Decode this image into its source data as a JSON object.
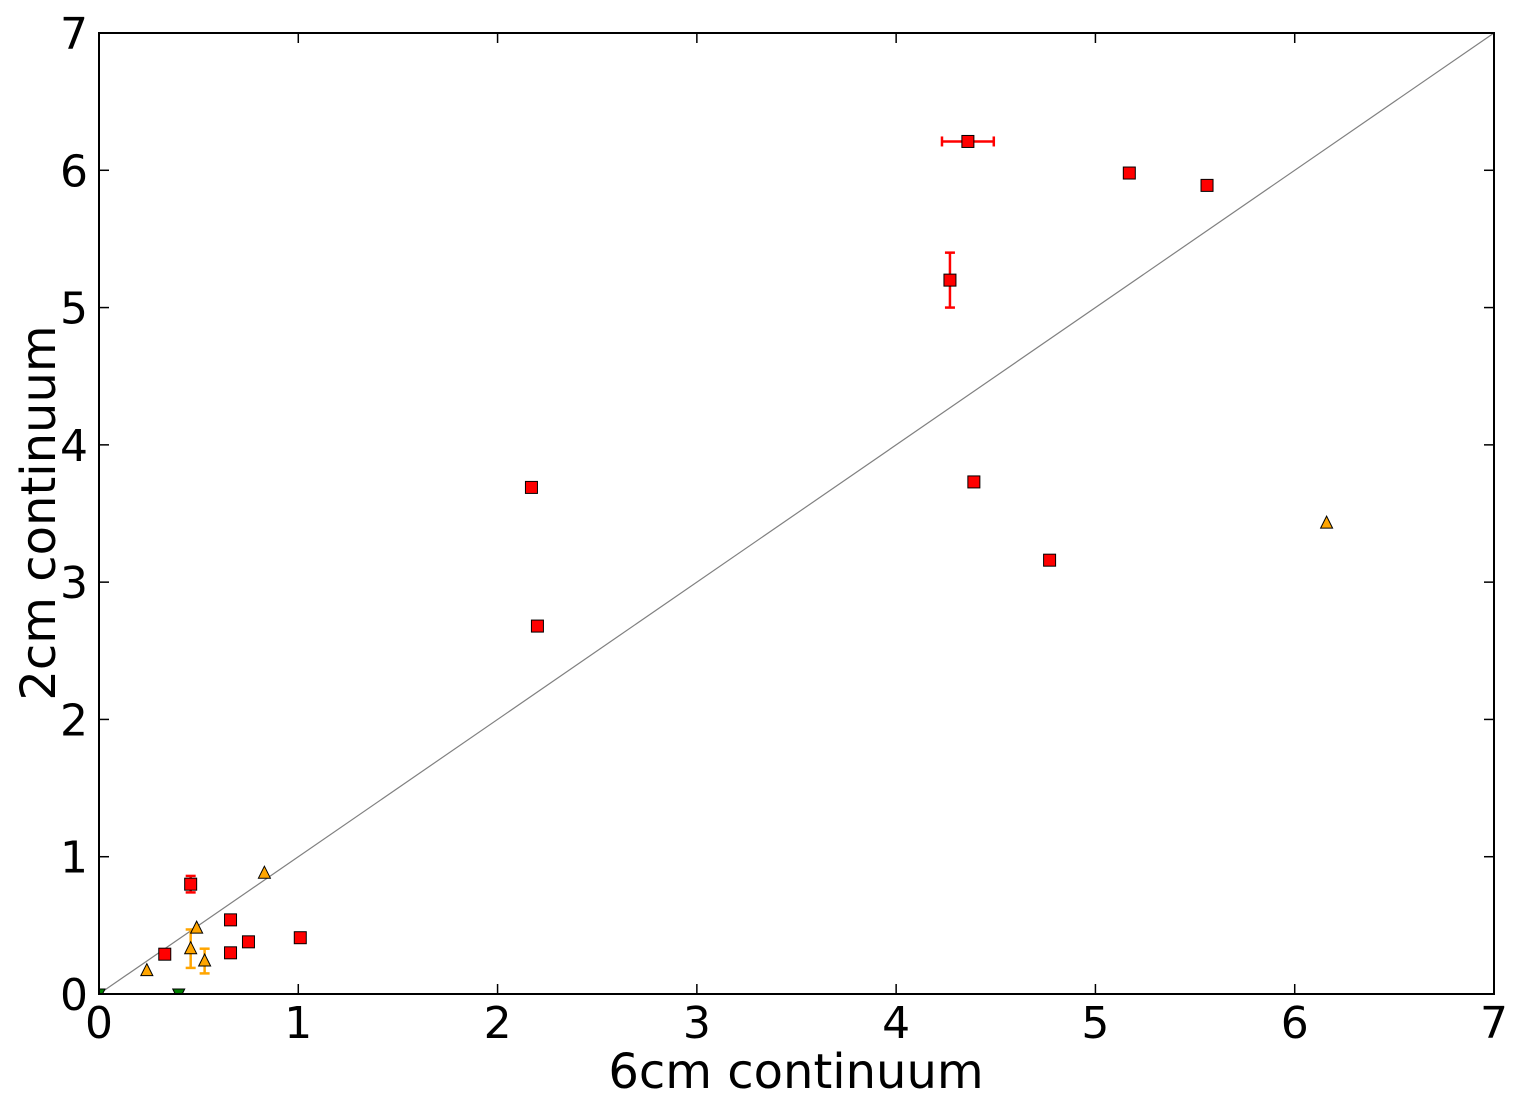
{
  "chart_data": {
    "type": "scatter",
    "title": "",
    "xlabel": "6cm continuum",
    "ylabel": "2cm continuum",
    "xlim": [
      0,
      7
    ],
    "ylim": [
      0,
      7
    ],
    "xticks": [
      "0",
      "1",
      "2",
      "3",
      "4",
      "5",
      "6",
      "7"
    ],
    "yticks": [
      "0",
      "1",
      "2",
      "3",
      "4",
      "5",
      "6",
      "7"
    ],
    "grid": false,
    "legend": "none",
    "reference_line": {
      "from": [
        0,
        0
      ],
      "to": [
        7,
        7
      ],
      "color": "#808080"
    },
    "series": [
      {
        "marker": "square",
        "color": "#ff0000",
        "points": [
          {
            "x": 0.33,
            "y": 0.29
          },
          {
            "x": 0.46,
            "y": 0.8,
            "yerr": 0.06
          },
          {
            "x": 0.66,
            "y": 0.54
          },
          {
            "x": 0.66,
            "y": 0.3
          },
          {
            "x": 0.75,
            "y": 0.38
          },
          {
            "x": 1.01,
            "y": 0.41
          },
          {
            "x": 2.17,
            "y": 3.69
          },
          {
            "x": 2.2,
            "y": 2.68
          },
          {
            "x": 4.27,
            "y": 5.2,
            "yerr": 0.2
          },
          {
            "x": 4.36,
            "y": 6.21,
            "xerr": 0.13
          },
          {
            "x": 4.39,
            "y": 3.73
          },
          {
            "x": 4.77,
            "y": 3.16
          },
          {
            "x": 5.17,
            "y": 5.98
          },
          {
            "x": 5.56,
            "y": 5.89
          }
        ]
      },
      {
        "marker": "triangle-up",
        "color": "#ffa500",
        "points": [
          {
            "x": 0.24,
            "y": 0.17
          },
          {
            "x": 0.46,
            "y": 0.33,
            "yerr": 0.14
          },
          {
            "x": 0.49,
            "y": 0.48
          },
          {
            "x": 0.53,
            "y": 0.24,
            "yerr": 0.09
          },
          {
            "x": 0.83,
            "y": 0.88
          },
          {
            "x": 6.16,
            "y": 3.43
          }
        ]
      },
      {
        "marker": "triangle-down",
        "color": "#008000",
        "points": [
          {
            "x": 0.0,
            "y": 0.0
          },
          {
            "x": 0.4,
            "y": 0.0
          }
        ]
      }
    ]
  }
}
